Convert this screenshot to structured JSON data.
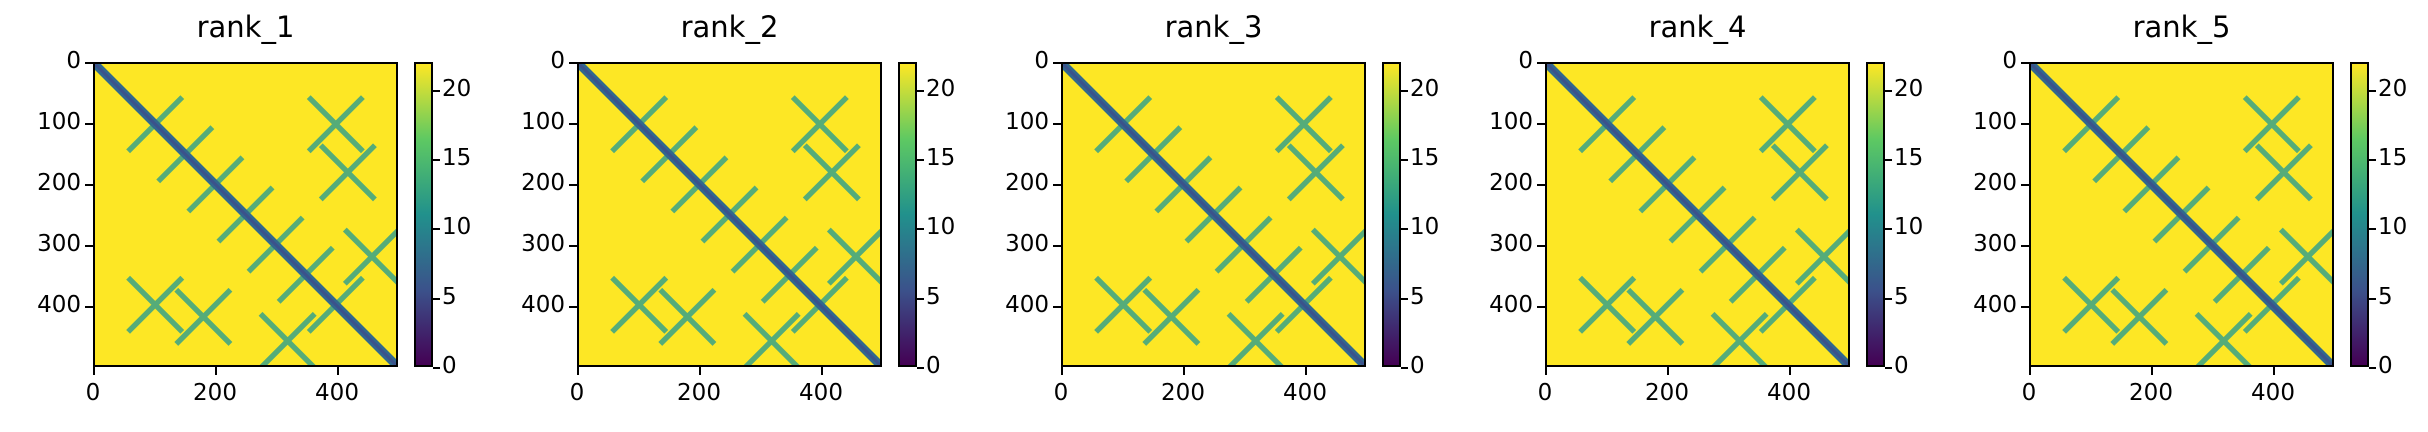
{
  "chart_data": [
    {
      "type": "heatmap",
      "title": "rank_1",
      "x_ticks": [
        "0",
        "200",
        "400"
      ],
      "y_ticks": [
        "0",
        "100",
        "200",
        "300",
        "400"
      ],
      "xlim": [
        0,
        500
      ],
      "ylim": [
        0,
        500
      ],
      "colorbar_ticks": [
        "0",
        "5",
        "10",
        "15",
        "20"
      ],
      "colorbar_range": [
        0,
        22
      ],
      "colormap": "viridis"
    },
    {
      "type": "heatmap",
      "title": "rank_2",
      "x_ticks": [
        "0",
        "200",
        "400"
      ],
      "y_ticks": [
        "0",
        "100",
        "200",
        "300",
        "400"
      ],
      "xlim": [
        0,
        500
      ],
      "ylim": [
        0,
        500
      ],
      "colorbar_ticks": [
        "0",
        "5",
        "10",
        "15",
        "20"
      ],
      "colorbar_range": [
        0,
        22
      ],
      "colormap": "viridis"
    },
    {
      "type": "heatmap",
      "title": "rank_3",
      "x_ticks": [
        "0",
        "200",
        "400"
      ],
      "y_ticks": [
        "0",
        "100",
        "200",
        "300",
        "400"
      ],
      "xlim": [
        0,
        500
      ],
      "ylim": [
        0,
        500
      ],
      "colorbar_ticks": [
        "0",
        "5",
        "10",
        "15",
        "20"
      ],
      "colorbar_range": [
        0,
        22
      ],
      "colormap": "viridis"
    },
    {
      "type": "heatmap",
      "title": "rank_4",
      "x_ticks": [
        "0",
        "200",
        "400"
      ],
      "y_ticks": [
        "0",
        "100",
        "200",
        "300",
        "400"
      ],
      "xlim": [
        0,
        500
      ],
      "ylim": [
        0,
        500
      ],
      "colorbar_ticks": [
        "0",
        "5",
        "10",
        "15",
        "20"
      ],
      "colorbar_range": [
        0,
        22
      ],
      "colormap": "viridis"
    },
    {
      "type": "heatmap",
      "title": "rank_5",
      "x_ticks": [
        "0",
        "200",
        "400"
      ],
      "y_ticks": [
        "0",
        "100",
        "200",
        "300",
        "400"
      ],
      "xlim": [
        0,
        500
      ],
      "ylim": [
        0,
        500
      ],
      "colorbar_ticks": [
        "0",
        "5",
        "10",
        "15",
        "20"
      ],
      "colorbar_range": [
        0,
        22
      ],
      "colormap": "viridis"
    }
  ]
}
